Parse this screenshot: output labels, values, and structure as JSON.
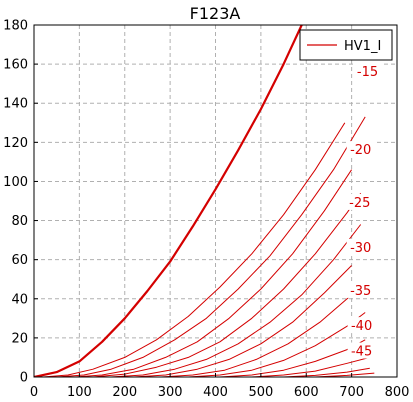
{
  "chart_data": {
    "type": "line",
    "title": "F123A",
    "xlabel": "",
    "ylabel": "",
    "xlim": [
      0,
      800
    ],
    "ylim": [
      0,
      180
    ],
    "xticks": [
      0,
      100,
      200,
      300,
      400,
      500,
      600,
      700,
      800
    ],
    "yticks": [
      0,
      20,
      40,
      60,
      80,
      100,
      120,
      140,
      160,
      180
    ],
    "grid": true,
    "legend": {
      "position": "top-right",
      "entries": [
        {
          "name": "HV1_I",
          "color": "#d40000"
        }
      ]
    },
    "colors": {
      "curve": "#d40000",
      "grid": "#b0b0b0",
      "legend_line": "#d40000"
    },
    "curve_labels": [
      {
        "text": "-15",
        "x": 735,
        "y": 155
      },
      {
        "text": "-20",
        "x": 720,
        "y": 115
      },
      {
        "text": "-25",
        "x": 718,
        "y": 88
      },
      {
        "text": "-30",
        "x": 720,
        "y": 65
      },
      {
        "text": "-35",
        "x": 720,
        "y": 43
      },
      {
        "text": "-40",
        "x": 722,
        "y": 25
      },
      {
        "text": "-45",
        "x": 722,
        "y": 12
      }
    ],
    "series": [
      {
        "x": [
          0,
          50,
          100,
          150,
          200,
          250,
          300,
          350,
          400,
          450,
          500,
          550,
          590
        ],
        "y": [
          0,
          2.5,
          8,
          18,
          30,
          44,
          59,
          77,
          96,
          116,
          137,
          160,
          180
        ]
      },
      {
        "x": [
          20,
          75,
          130,
          200,
          270,
          340,
          410,
          480,
          550,
          620,
          685
        ],
        "y": [
          0,
          1,
          4,
          10,
          19,
          31,
          46,
          63,
          83,
          106,
          130
        ]
      },
      {
        "x": [
          50,
          110,
          170,
          240,
          310,
          380,
          450,
          520,
          590,
          660,
          730
        ],
        "y": [
          0,
          1,
          4,
          10,
          19,
          30,
          45,
          62,
          83,
          106,
          133
        ]
      },
      {
        "x": [
          90,
          150,
          220,
          290,
          360,
          430,
          500,
          570,
          640,
          700
        ],
        "y": [
          0,
          1,
          4,
          10,
          18,
          30,
          45,
          63,
          85,
          106
        ]
      },
      {
        "x": [
          130,
          200,
          270,
          340,
          410,
          480,
          550,
          620,
          690,
          720
        ],
        "y": [
          0,
          1.5,
          5,
          10,
          18,
          30,
          45,
          63,
          84,
          94
        ]
      },
      {
        "x": [
          170,
          240,
          310,
          380,
          450,
          520,
          590,
          660,
          720
        ],
        "y": [
          0,
          1,
          4,
          9,
          17,
          28,
          42,
          60,
          78
        ]
      },
      {
        "x": [
          220,
          290,
          360,
          430,
          500,
          570,
          640,
          700
        ],
        "y": [
          0,
          1,
          4,
          9,
          17,
          28,
          43,
          57
        ]
      },
      {
        "x": [
          280,
          350,
          420,
          490,
          560,
          630,
          700
        ],
        "y": [
          0,
          1,
          3.5,
          9,
          17,
          28,
          42
        ]
      },
      {
        "x": [
          340,
          410,
          480,
          550,
          620,
          690,
          730
        ],
        "y": [
          0,
          1,
          3.5,
          8.5,
          16,
          26,
          33
        ]
      },
      {
        "x": [
          410,
          480,
          550,
          620,
          690,
          730
        ],
        "y": [
          0,
          1,
          3.5,
          8,
          14,
          19
        ]
      },
      {
        "x": [
          480,
          550,
          620,
          690,
          740
        ],
        "y": [
          0,
          1,
          3,
          7,
          10
        ]
      },
      {
        "x": [
          550,
          620,
          690,
          740
        ],
        "y": [
          0,
          0.8,
          2.5,
          4.5
        ]
      },
      {
        "x": [
          620,
          690,
          750
        ],
        "y": [
          0,
          0.8,
          2
        ]
      }
    ]
  }
}
